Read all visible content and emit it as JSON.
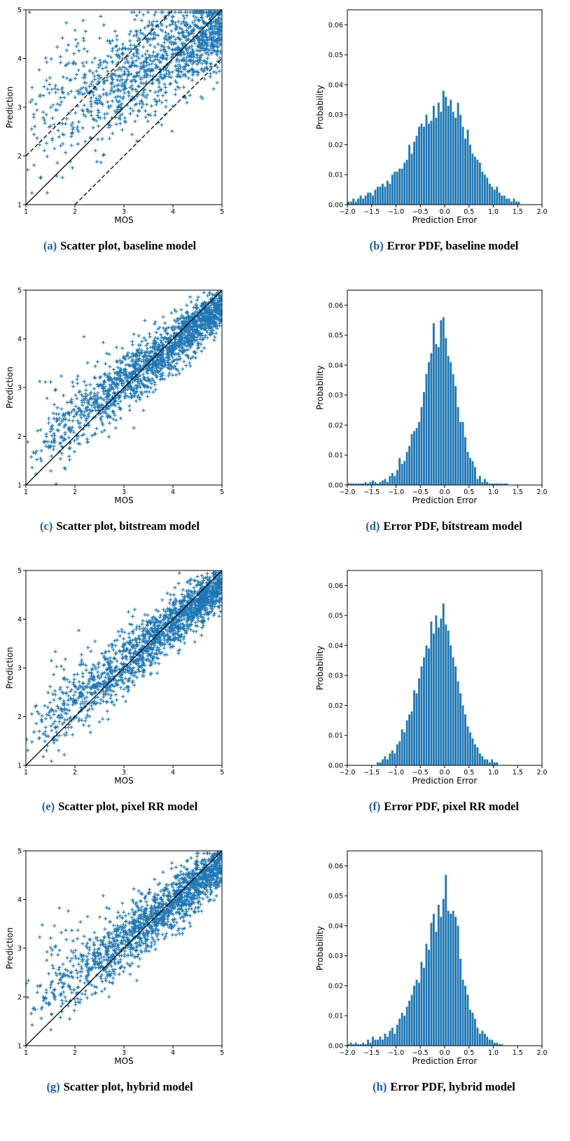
{
  "colors": {
    "marker": "#1f77b4",
    "bar": "#1f77b4",
    "reference_line": "#000000",
    "caption_letter": "#1f5fa8"
  },
  "chart_data": [
    {
      "id": "scatter-baseline",
      "type": "scatter",
      "marker": "plus",
      "caption_letter": "(a)",
      "caption_text": "Scatter plot, baseline model",
      "xlabel": "MOS",
      "ylabel": "Prediction",
      "xlim": [
        1,
        5
      ],
      "ylim": [
        1,
        5
      ],
      "xticks": [
        "1",
        "2",
        "3",
        "4",
        "5"
      ],
      "yticks": [
        "1",
        "2",
        "3",
        "4",
        "5"
      ],
      "reference_lines": [
        {
          "from": [
            1,
            1
          ],
          "to": [
            5,
            5
          ],
          "style": "solid"
        },
        {
          "from": [
            1,
            2
          ],
          "to": [
            4,
            5
          ],
          "style": "dashed"
        },
        {
          "from": [
            2,
            1
          ],
          "to": [
            5,
            4
          ],
          "style": "dashed"
        }
      ],
      "trend": {
        "fit": [
          1.9,
          0.55
        ],
        "spread": 0.55,
        "count": 1300,
        "lowmos_extra": 0.35
      }
    },
    {
      "id": "pdf-baseline",
      "type": "bar",
      "caption_letter": "(b)",
      "caption_text": "Error PDF, baseline model",
      "xlabel": "Prediction Error",
      "ylabel": "Probability",
      "xlim": [
        -2.0,
        2.0
      ],
      "ylim": [
        0,
        0.065
      ],
      "xticks": [
        "−2.0",
        "−1.5",
        "−1.0",
        "−0.5",
        "0.0",
        "0.5",
        "1.0",
        "1.5",
        "2.0"
      ],
      "yticks": [
        "0.00",
        "0.01",
        "0.02",
        "0.03",
        "0.04",
        "0.05",
        "0.06"
      ],
      "bin_start": -2.0,
      "bin_width": 0.05,
      "values": [
        0.001,
        0.001,
        0.002,
        0.001,
        0.002,
        0.003,
        0.002,
        0.003,
        0.004,
        0.004,
        0.003,
        0.005,
        0.006,
        0.006,
        0.007,
        0.006,
        0.008,
        0.007,
        0.01,
        0.011,
        0.011,
        0.012,
        0.012,
        0.014,
        0.015,
        0.02,
        0.017,
        0.021,
        0.023,
        0.026,
        0.027,
        0.026,
        0.03,
        0.027,
        0.028,
        0.033,
        0.029,
        0.034,
        0.031,
        0.038,
        0.036,
        0.033,
        0.035,
        0.031,
        0.029,
        0.034,
        0.03,
        0.026,
        0.022,
        0.025,
        0.02,
        0.017,
        0.016,
        0.015,
        0.014,
        0.011,
        0.01,
        0.009,
        0.007,
        0.006,
        0.005,
        0.006,
        0.004,
        0.003,
        0.003,
        0.002,
        0.002,
        0.001,
        0.002,
        0.001,
        0.001
      ]
    },
    {
      "id": "scatter-bitstream",
      "type": "scatter",
      "marker": "plus",
      "caption_letter": "(c)",
      "caption_text": "Scatter plot, bitstream model",
      "xlabel": "MOS",
      "ylabel": "Prediction",
      "xlim": [
        1,
        5
      ],
      "ylim": [
        1,
        5
      ],
      "xticks": [
        "1",
        "2",
        "3",
        "4",
        "5"
      ],
      "yticks": [
        "1",
        "2",
        "3",
        "4",
        "5"
      ],
      "reference_lines": [
        {
          "from": [
            1,
            1
          ],
          "to": [
            5,
            5
          ],
          "style": "solid"
        }
      ],
      "trend": {
        "fit": [
          0.8,
          0.77
        ],
        "spread": 0.3,
        "count": 1700,
        "lowmos_extra": 0.1
      }
    },
    {
      "id": "pdf-bitstream",
      "type": "bar",
      "caption_letter": "(d)",
      "caption_text": "Error PDF, bitstream model",
      "xlabel": "Prediction Error",
      "ylabel": "Probability",
      "xlim": [
        -2.0,
        2.0
      ],
      "ylim": [
        0,
        0.065
      ],
      "xticks": [
        "−2.0",
        "−1.5",
        "−1.0",
        "−0.5",
        "0.0",
        "0.5",
        "1.0",
        "1.5",
        "2.0"
      ],
      "yticks": [
        "0.00",
        "0.01",
        "0.02",
        "0.03",
        "0.04",
        "0.05",
        "0.06"
      ],
      "bin_start": -2.0,
      "bin_width": 0.05,
      "values": [
        0.0005,
        0.0005,
        0.0005,
        0.0005,
        0.0005,
        0.0005,
        0.0005,
        0.001,
        0.0005,
        0.001,
        0.0015,
        0.001,
        0.0005,
        0.001,
        0.0015,
        0.002,
        0.001,
        0.003,
        0.004,
        0.003,
        0.005,
        0.009,
        0.007,
        0.008,
        0.011,
        0.013,
        0.017,
        0.018,
        0.019,
        0.021,
        0.026,
        0.031,
        0.037,
        0.041,
        0.044,
        0.054,
        0.047,
        0.046,
        0.055,
        0.056,
        0.049,
        0.043,
        0.041,
        0.037,
        0.033,
        0.026,
        0.021,
        0.021,
        0.016,
        0.011,
        0.009,
        0.008,
        0.006,
        0.002,
        0.003,
        0.001,
        0.002,
        0.001,
        0.0005,
        0.0005,
        0.0005,
        0.0005,
        0.0005,
        0.0005,
        0.0005,
        0.0005
      ]
    },
    {
      "id": "scatter-pixelrr",
      "type": "scatter",
      "marker": "plus",
      "caption_letter": "(e)",
      "caption_text": "Scatter plot, pixel RR model",
      "xlabel": "MOS",
      "ylabel": "Prediction",
      "xlim": [
        1,
        5
      ],
      "ylim": [
        1,
        5
      ],
      "xticks": [
        "1",
        "2",
        "3",
        "4",
        "5"
      ],
      "yticks": [
        "1",
        "2",
        "3",
        "4",
        "5"
      ],
      "reference_lines": [
        {
          "from": [
            1,
            1
          ],
          "to": [
            5,
            5
          ],
          "style": "solid"
        }
      ],
      "trend": {
        "fit": [
          0.7,
          0.8
        ],
        "spread": 0.3,
        "count": 1700,
        "lowmos_extra": 0.15
      }
    },
    {
      "id": "pdf-pixelrr",
      "type": "bar",
      "caption_letter": "(f)",
      "caption_text": "Error PDF, pixel RR model",
      "xlabel": "Prediction Error",
      "ylabel": "Probability",
      "xlim": [
        -2.0,
        2.0
      ],
      "ylim": [
        0,
        0.065
      ],
      "xticks": [
        "−2.0",
        "−1.5",
        "−1.0",
        "−0.5",
        "0.0",
        "0.5",
        "1.0",
        "1.5",
        "2.0"
      ],
      "yticks": [
        "0.00",
        "0.01",
        "0.02",
        "0.03",
        "0.04",
        "0.05",
        "0.06"
      ],
      "bin_start": -1.4,
      "bin_width": 0.05,
      "values": [
        0.001,
        0.001,
        0.002,
        0.003,
        0.002,
        0.004,
        0.005,
        0.004,
        0.007,
        0.008,
        0.012,
        0.011,
        0.015,
        0.017,
        0.018,
        0.025,
        0.024,
        0.029,
        0.033,
        0.036,
        0.04,
        0.039,
        0.048,
        0.044,
        0.05,
        0.046,
        0.049,
        0.054,
        0.047,
        0.045,
        0.04,
        0.036,
        0.033,
        0.028,
        0.024,
        0.02,
        0.017,
        0.013,
        0.011,
        0.009,
        0.007,
        0.006,
        0.004,
        0.003,
        0.002,
        0.002,
        0.001,
        0.002,
        0.001,
        0.001
      ]
    },
    {
      "id": "scatter-hybrid",
      "type": "scatter",
      "marker": "plus",
      "caption_letter": "(g)",
      "caption_text": "Scatter plot, hybrid model",
      "xlabel": "MOS",
      "ylabel": "Prediction",
      "xlim": [
        1,
        5
      ],
      "ylim": [
        1,
        5
      ],
      "xticks": [
        "1",
        "2",
        "3",
        "4",
        "5"
      ],
      "yticks": [
        "1",
        "2",
        "3",
        "4",
        "5"
      ],
      "reference_lines": [
        {
          "from": [
            1,
            1
          ],
          "to": [
            5,
            5
          ],
          "style": "solid"
        }
      ],
      "trend": {
        "fit": [
          0.9,
          0.76
        ],
        "spread": 0.32,
        "count": 1600,
        "lowmos_extra": 0.2
      }
    },
    {
      "id": "pdf-hybrid",
      "type": "bar",
      "caption_letter": "(h)",
      "caption_text": "Error PDF, hybrid model",
      "xlabel": "Prediction Error",
      "ylabel": "Probability",
      "xlim": [
        -2.0,
        2.0
      ],
      "ylim": [
        0,
        0.065
      ],
      "xticks": [
        "−2.0",
        "−1.5",
        "−1.0",
        "−0.5",
        "0.0",
        "0.5",
        "1.0",
        "1.5",
        "2.0"
      ],
      "yticks": [
        "0.00",
        "0.01",
        "0.02",
        "0.03",
        "0.04",
        "0.05",
        "0.06"
      ],
      "bin_start": -2.0,
      "bin_width": 0.05,
      "values": [
        0.0005,
        0.001,
        0.0005,
        0.001,
        0.0005,
        0.0005,
        0.001,
        0.0005,
        0.002,
        0.001,
        0.003,
        0.002,
        0.002,
        0.003,
        0.002,
        0.004,
        0.003,
        0.005,
        0.006,
        0.004,
        0.007,
        0.009,
        0.011,
        0.01,
        0.013,
        0.015,
        0.017,
        0.02,
        0.022,
        0.021,
        0.028,
        0.026,
        0.034,
        0.032,
        0.041,
        0.044,
        0.038,
        0.047,
        0.043,
        0.049,
        0.057,
        0.045,
        0.044,
        0.045,
        0.043,
        0.04,
        0.029,
        0.022,
        0.02,
        0.017,
        0.012,
        0.011,
        0.009,
        0.006,
        0.004,
        0.005,
        0.004,
        0.003,
        0.002,
        0.002,
        0.001,
        0.001,
        0.0005,
        0.0005
      ]
    }
  ]
}
